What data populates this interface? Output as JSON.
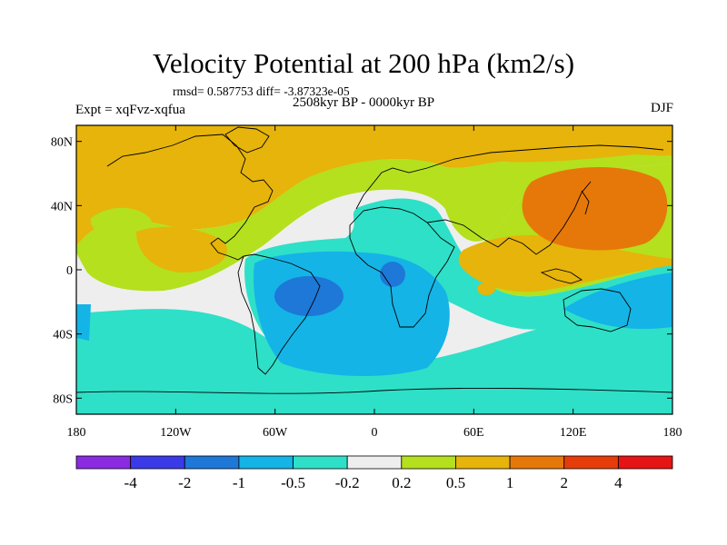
{
  "title": "Velocity Potential at 200 hPa (km2/s)",
  "stats": "rmsd= 0.587753 diff= -3.87323e-05",
  "left_label": "Expt = xqFvz-xqfua",
  "center_label": "2508kyr BP - 0000kyr BP",
  "right_label": "DJF",
  "map": {
    "projection": "cylindrical-equidistant",
    "lon_range": [
      -180,
      180
    ],
    "lat_range": [
      -90,
      90
    ],
    "y_ticks": [
      {
        "lat": 80,
        "label": "80N"
      },
      {
        "lat": 40,
        "label": "40N"
      },
      {
        "lat": 0,
        "label": "0"
      },
      {
        "lat": -40,
        "label": "40S"
      },
      {
        "lat": -80,
        "label": "80S"
      }
    ],
    "x_ticks": [
      {
        "lon": -180,
        "label": "180"
      },
      {
        "lon": -120,
        "label": "120W"
      },
      {
        "lon": -60,
        "label": "60W"
      },
      {
        "lon": 0,
        "label": "0"
      },
      {
        "lon": 60,
        "label": "60E"
      },
      {
        "lon": 120,
        "label": "120E"
      },
      {
        "lon": 180,
        "label": "180"
      }
    ]
  },
  "colorbar": {
    "colors": [
      "#8a2be2",
      "#3a3ae8",
      "#1e78d8",
      "#14b4e6",
      "#2ee0c8",
      "#eeeeee",
      "#b4e01e",
      "#e6b40a",
      "#e6780a",
      "#e63c0a",
      "#e61414"
    ],
    "labels": [
      "-4",
      "-2",
      "-1",
      "-0.5",
      "-0.2",
      "0.2",
      "0.5",
      "1",
      "2",
      "4"
    ]
  },
  "field_palette": {
    "neg_strong": "#1e78d8",
    "neg": "#14b4e6",
    "neg_weak": "#2ee0c8",
    "neutral": "#eeeeee",
    "pos_weak": "#b4e01e",
    "pos": "#e6b40a",
    "pos_strong": "#e6780a"
  }
}
